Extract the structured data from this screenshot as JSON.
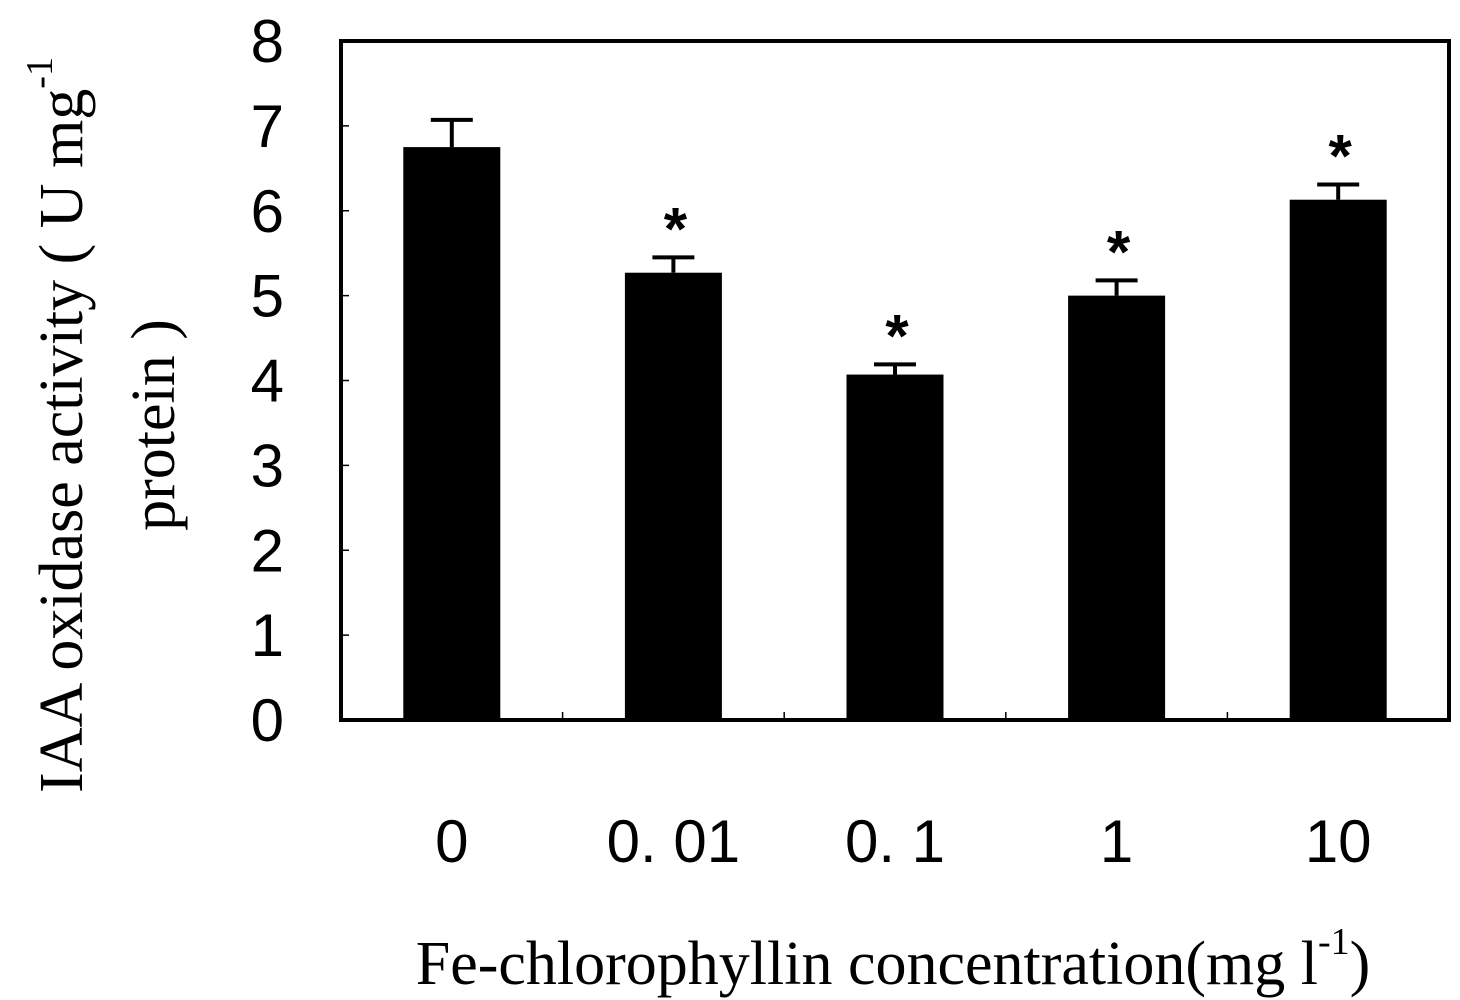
{
  "chart_data": {
    "type": "bar",
    "categories": [
      "0",
      "0. 01",
      "0. 1",
      "1",
      "10"
    ],
    "values": [
      6.75,
      5.27,
      4.07,
      5.0,
      6.13
    ],
    "error": [
      0.32,
      0.18,
      0.12,
      0.18,
      0.18
    ],
    "significance": [
      "",
      "*",
      "*",
      "*",
      "*"
    ],
    "xlabel": "Fe-chlorophyllin concentration(mg l",
    "xlabel_sup": "-1",
    "xlabel_end": ")",
    "ylabel_line1": "IAA oxidase activity ( U mg",
    "ylabel_sup": "-1",
    "ylabel_line2": "protein )",
    "ylim": [
      0,
      8
    ],
    "yticks": [
      "0",
      "1",
      "2",
      "3",
      "4",
      "5",
      "6",
      "7",
      "8"
    ],
    "bar_color": "#000000",
    "grid": false
  }
}
